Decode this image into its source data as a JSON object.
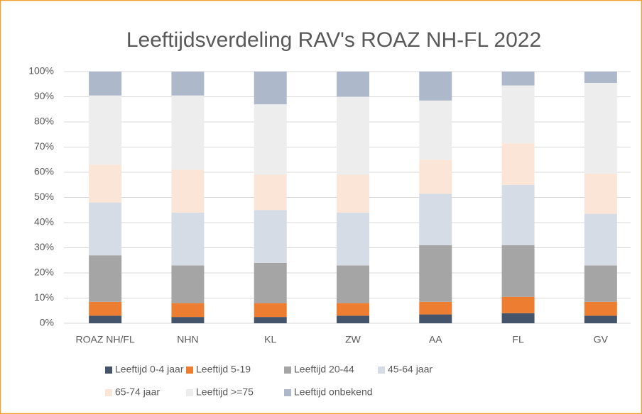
{
  "chart_data": {
    "type": "stacked_bar",
    "title": "Leeftijdsverdeling RAV's ROAZ NH-FL 2022",
    "categories": [
      "ROAZ NH/FL",
      "NHN",
      "KL",
      "ZW",
      "AA",
      "FL",
      "GV"
    ],
    "series": [
      {
        "name": "Leeftijd 0-4 jaar",
        "color": "#44546a",
        "values": [
          3,
          2.5,
          2.5,
          3,
          3.5,
          4,
          3
        ]
      },
      {
        "name": "Leeftijd 5-19",
        "color": "#ed7d31",
        "values": [
          5.5,
          5.5,
          5.5,
          5,
          5,
          6.5,
          5.5
        ]
      },
      {
        "name": "Leeftijd 20-44",
        "color": "#a5a5a5",
        "values": [
          18.5,
          15,
          16,
          15,
          22.5,
          20.5,
          14.5
        ]
      },
      {
        "name": "45-64 jaar",
        "color": "#d6dce5",
        "values": [
          21,
          21,
          21,
          21,
          20.5,
          24,
          20.5
        ]
      },
      {
        "name": "65-74 jaar",
        "color": "#fbe5d6",
        "values": [
          15,
          17,
          14,
          15,
          13.5,
          16.5,
          16
        ]
      },
      {
        "name": "Leeftijd >=75",
        "color": "#ededed",
        "values": [
          27.5,
          29.5,
          28,
          31,
          23.5,
          23,
          36
        ]
      },
      {
        "name": "Leeftijd onbekend",
        "color": "#adb9ca",
        "values": [
          9.5,
          9.5,
          13,
          10,
          11.5,
          5.5,
          4.5
        ]
      }
    ],
    "ylim": [
      0,
      100
    ],
    "yticks": [
      {
        "value": 0,
        "label": "0%"
      },
      {
        "value": 10,
        "label": "10%"
      },
      {
        "value": 20,
        "label": "20%"
      },
      {
        "value": 30,
        "label": "30%"
      },
      {
        "value": 40,
        "label": "40%"
      },
      {
        "value": 50,
        "label": "50%"
      },
      {
        "value": 60,
        "label": "60%"
      },
      {
        "value": 70,
        "label": "70%"
      },
      {
        "value": 80,
        "label": "80%"
      },
      {
        "value": 90,
        "label": "90%"
      },
      {
        "value": 100,
        "label": "100%"
      }
    ],
    "grid": true,
    "legend": "bottom"
  }
}
